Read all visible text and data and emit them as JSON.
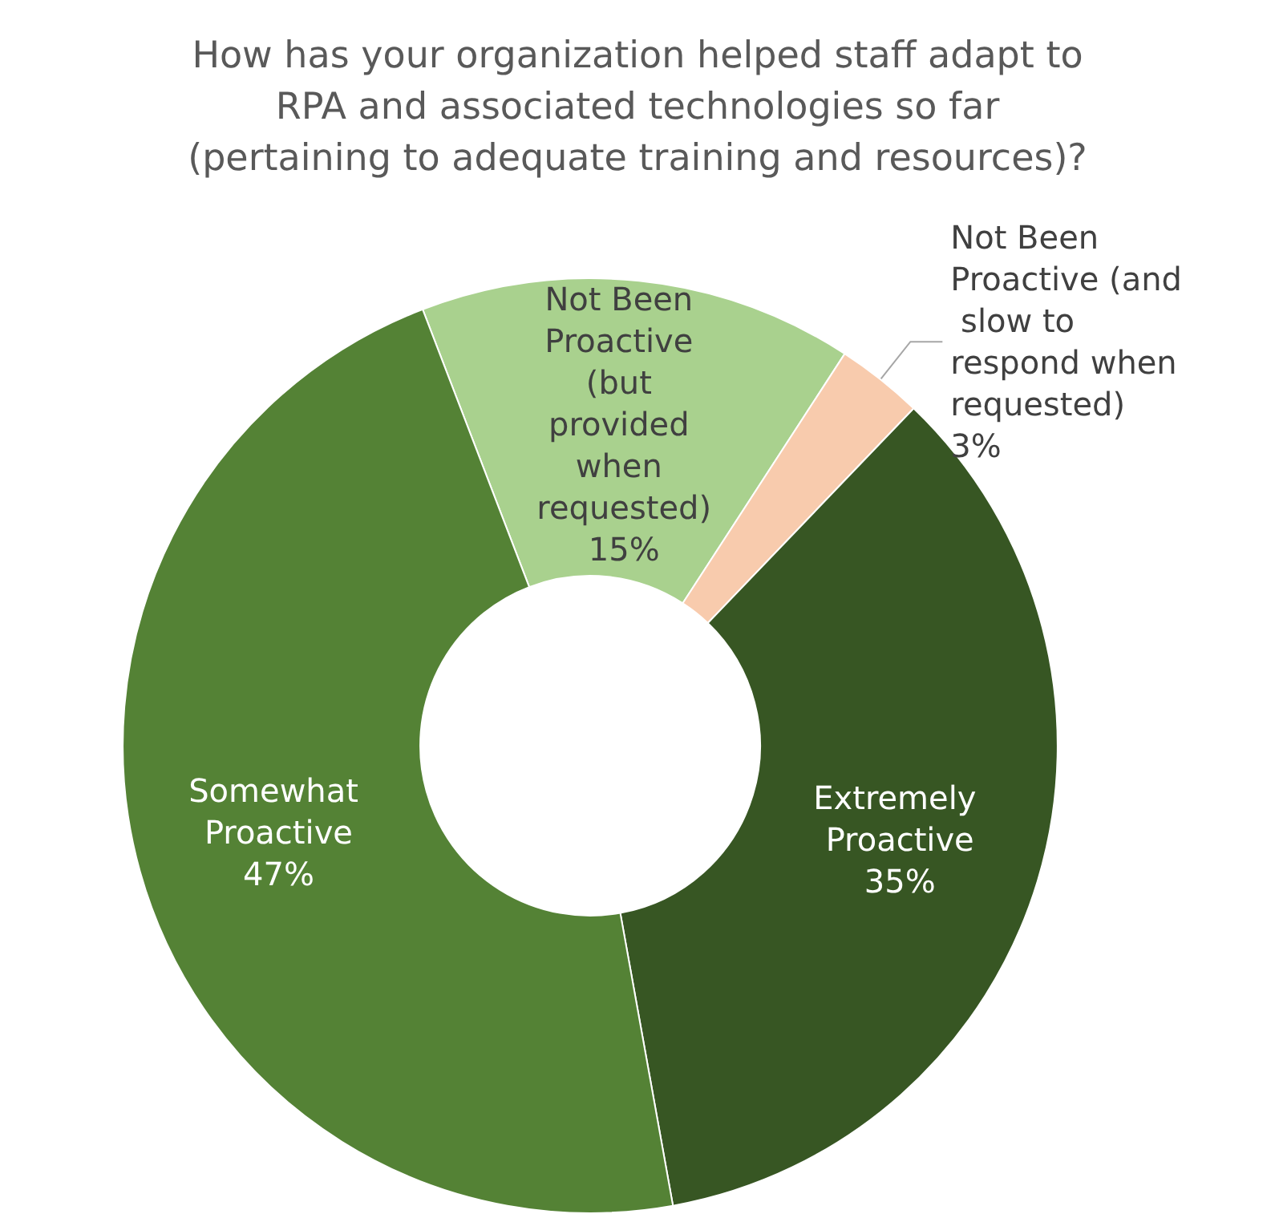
{
  "chart_data": {
    "type": "donut",
    "title": "How has your organization helped staff adapt to\nRPA and associated technologies so far\n(pertaining to adequate training and resources)?",
    "categories": [
      "Not Been Proactive (but provided when requested)",
      "Not Been Proactive (and slow to respond when requested)",
      "Extremely Proactive",
      "Somewhat Proactive"
    ],
    "values": [
      15,
      3,
      35,
      47
    ],
    "value_labels": [
      "15%",
      "3%",
      "35%",
      "47%"
    ],
    "colors": [
      "#a9d18e",
      "#f8cbad",
      "#375623",
      "#548235"
    ]
  }
}
